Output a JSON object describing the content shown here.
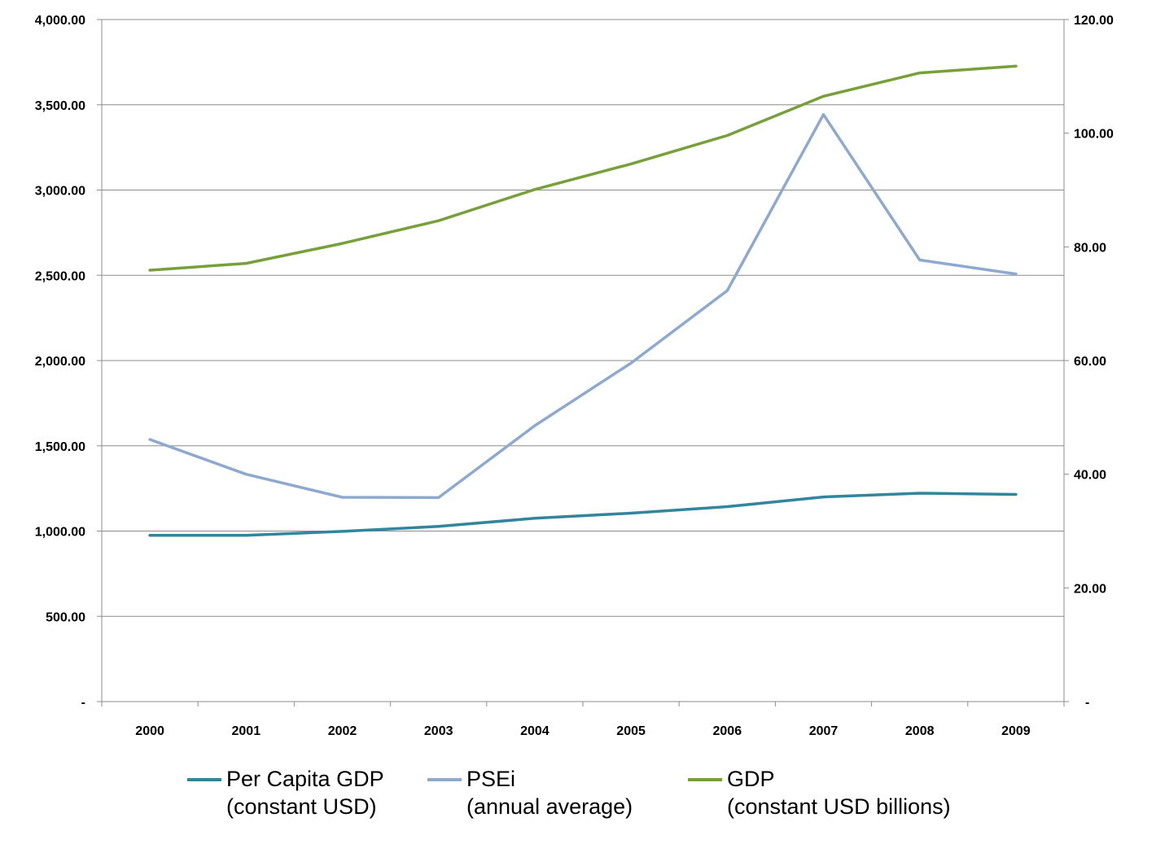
{
  "chart_data": {
    "type": "line",
    "title": "",
    "xlabel": "",
    "ylabel": "",
    "y2label": "",
    "categories": [
      "2000",
      "2001",
      "2002",
      "2003",
      "2004",
      "2005",
      "2006",
      "2007",
      "2008",
      "2009"
    ],
    "ylim": [
      0,
      4000
    ],
    "y2lim": [
      0,
      120
    ],
    "y_ticks": [
      "-",
      "500.00",
      "1,000.00",
      "1,500.00",
      "2,000.00",
      "2,500.00",
      "3,000.00",
      "3,500.00",
      "4,000.00"
    ],
    "y2_ticks": [
      "-",
      "20.00",
      "40.00",
      "60.00",
      "80.00",
      "100.00",
      "120.00"
    ],
    "grid": true,
    "legend_position": "bottom",
    "series": [
      {
        "name": "Per Capita GDP",
        "name_line2": "(constant USD)",
        "axis": "left",
        "color": "#31859C",
        "values": [
          975,
          975,
          998,
          1027,
          1075,
          1105,
          1143,
          1200,
          1222,
          1215
        ]
      },
      {
        "name": "PSEi",
        "name_line2": "(annual average)",
        "axis": "left",
        "color": "#8EA9CF",
        "values": [
          1537,
          1333,
          1198,
          1196,
          1618,
          1985,
          2410,
          3443,
          2590,
          2508
        ]
      },
      {
        "name": "GDP",
        "name_line2": "(constant USD billions)",
        "axis": "right",
        "color": "#77A03A",
        "values": [
          75.9,
          77.1,
          80.6,
          84.6,
          90.1,
          94.6,
          99.6,
          106.5,
          110.6,
          111.8
        ]
      }
    ]
  }
}
